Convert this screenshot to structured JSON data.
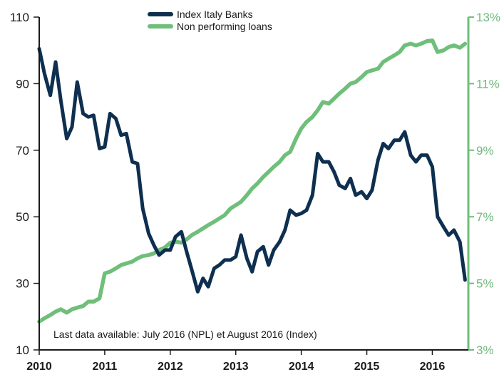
{
  "chart_data": {
    "type": "line",
    "x_ticks": [
      "2010",
      "2011",
      "2012",
      "2013",
      "2014",
      "2015",
      "2016"
    ],
    "ylim_left": [
      10,
      110
    ],
    "yticks_left": [
      "10",
      "30",
      "50",
      "70",
      "90",
      "110"
    ],
    "ylim_right": [
      3,
      13
    ],
    "yticks_right": [
      "3%",
      "5%",
      "7%",
      "9%",
      "11%",
      "13%"
    ],
    "note": "Last data available: July 2016 (NPL) et August 2016 (Index)",
    "legend_position": "top-center",
    "series": [
      {
        "name": "Index Italy Banks",
        "axis": "left",
        "color": "#0e2f4f",
        "points": [
          [
            2010.0,
            100.5
          ],
          [
            2010.08,
            93
          ],
          [
            2010.17,
            86.5
          ],
          [
            2010.25,
            96.5
          ],
          [
            2010.33,
            85
          ],
          [
            2010.42,
            73.5
          ],
          [
            2010.5,
            77
          ],
          [
            2010.58,
            90.5
          ],
          [
            2010.67,
            81
          ],
          [
            2010.75,
            80
          ],
          [
            2010.83,
            80.5
          ],
          [
            2010.92,
            70.5
          ],
          [
            2011.0,
            71
          ],
          [
            2011.08,
            81
          ],
          [
            2011.17,
            79.5
          ],
          [
            2011.25,
            74.5
          ],
          [
            2011.33,
            75
          ],
          [
            2011.42,
            66.5
          ],
          [
            2011.5,
            66
          ],
          [
            2011.58,
            52.5
          ],
          [
            2011.67,
            45
          ],
          [
            2011.75,
            41.5
          ],
          [
            2011.83,
            38.5
          ],
          [
            2011.92,
            40
          ],
          [
            2012.0,
            40
          ],
          [
            2012.08,
            44
          ],
          [
            2012.17,
            45.5
          ],
          [
            2012.25,
            39.5
          ],
          [
            2012.33,
            34
          ],
          [
            2012.42,
            27.5
          ],
          [
            2012.5,
            31.5
          ],
          [
            2012.58,
            29
          ],
          [
            2012.67,
            34.5
          ],
          [
            2012.75,
            35.5
          ],
          [
            2012.83,
            37
          ],
          [
            2012.92,
            37
          ],
          [
            2013.0,
            38
          ],
          [
            2013.08,
            44.5
          ],
          [
            2013.17,
            37.5
          ],
          [
            2013.25,
            33.5
          ],
          [
            2013.33,
            39.5
          ],
          [
            2013.42,
            41
          ],
          [
            2013.5,
            35.5
          ],
          [
            2013.58,
            40
          ],
          [
            2013.67,
            42.5
          ],
          [
            2013.75,
            46
          ],
          [
            2013.83,
            52
          ],
          [
            2013.92,
            50.5
          ],
          [
            2014.0,
            51
          ],
          [
            2014.08,
            52
          ],
          [
            2014.17,
            56.5
          ],
          [
            2014.25,
            69
          ],
          [
            2014.33,
            66.5
          ],
          [
            2014.42,
            66.5
          ],
          [
            2014.5,
            63.5
          ],
          [
            2014.58,
            59.5
          ],
          [
            2014.67,
            58.5
          ],
          [
            2014.75,
            61.5
          ],
          [
            2014.83,
            56.5
          ],
          [
            2014.92,
            57.5
          ],
          [
            2015.0,
            55.5
          ],
          [
            2015.08,
            58
          ],
          [
            2015.17,
            67
          ],
          [
            2015.25,
            72
          ],
          [
            2015.33,
            70.5
          ],
          [
            2015.42,
            73
          ],
          [
            2015.5,
            73
          ],
          [
            2015.58,
            75.5
          ],
          [
            2015.67,
            68.5
          ],
          [
            2015.75,
            66.5
          ],
          [
            2015.83,
            68.5
          ],
          [
            2015.92,
            68.5
          ],
          [
            2016.0,
            65
          ],
          [
            2016.08,
            50
          ],
          [
            2016.17,
            47
          ],
          [
            2016.25,
            44.5
          ],
          [
            2016.33,
            46
          ],
          [
            2016.42,
            42.5
          ],
          [
            2016.5,
            31
          ]
        ]
      },
      {
        "name": "Non performing loans",
        "axis": "right",
        "color": "#6fbf7a",
        "points": [
          [
            2010.0,
            3.85
          ],
          [
            2010.08,
            3.95
          ],
          [
            2010.17,
            4.05
          ],
          [
            2010.25,
            4.15
          ],
          [
            2010.33,
            4.22
          ],
          [
            2010.42,
            4.12
          ],
          [
            2010.5,
            4.22
          ],
          [
            2010.58,
            4.27
          ],
          [
            2010.67,
            4.32
          ],
          [
            2010.75,
            4.45
          ],
          [
            2010.83,
            4.45
          ],
          [
            2010.92,
            4.55
          ],
          [
            2011.0,
            5.3
          ],
          [
            2011.08,
            5.35
          ],
          [
            2011.17,
            5.45
          ],
          [
            2011.25,
            5.55
          ],
          [
            2011.33,
            5.6
          ],
          [
            2011.42,
            5.65
          ],
          [
            2011.5,
            5.75
          ],
          [
            2011.58,
            5.82
          ],
          [
            2011.67,
            5.85
          ],
          [
            2011.75,
            5.9
          ],
          [
            2011.83,
            6.0
          ],
          [
            2011.92,
            6.08
          ],
          [
            2012.0,
            6.22
          ],
          [
            2012.08,
            6.25
          ],
          [
            2012.17,
            6.22
          ],
          [
            2012.25,
            6.32
          ],
          [
            2012.33,
            6.45
          ],
          [
            2012.42,
            6.55
          ],
          [
            2012.5,
            6.65
          ],
          [
            2012.58,
            6.75
          ],
          [
            2012.67,
            6.85
          ],
          [
            2012.75,
            6.95
          ],
          [
            2012.83,
            7.05
          ],
          [
            2012.92,
            7.25
          ],
          [
            2013.0,
            7.35
          ],
          [
            2013.08,
            7.45
          ],
          [
            2013.17,
            7.65
          ],
          [
            2013.25,
            7.85
          ],
          [
            2013.33,
            8.0
          ],
          [
            2013.42,
            8.2
          ],
          [
            2013.5,
            8.35
          ],
          [
            2013.58,
            8.5
          ],
          [
            2013.67,
            8.65
          ],
          [
            2013.75,
            8.85
          ],
          [
            2013.83,
            8.95
          ],
          [
            2013.92,
            9.35
          ],
          [
            2014.0,
            9.65
          ],
          [
            2014.08,
            9.85
          ],
          [
            2014.17,
            10.0
          ],
          [
            2014.25,
            10.2
          ],
          [
            2014.33,
            10.45
          ],
          [
            2014.42,
            10.4
          ],
          [
            2014.5,
            10.55
          ],
          [
            2014.58,
            10.7
          ],
          [
            2014.67,
            10.85
          ],
          [
            2014.75,
            11.0
          ],
          [
            2014.83,
            11.05
          ],
          [
            2014.92,
            11.2
          ],
          [
            2015.0,
            11.35
          ],
          [
            2015.08,
            11.4
          ],
          [
            2015.17,
            11.45
          ],
          [
            2015.25,
            11.65
          ],
          [
            2015.33,
            11.75
          ],
          [
            2015.42,
            11.85
          ],
          [
            2015.5,
            11.95
          ],
          [
            2015.58,
            12.15
          ],
          [
            2015.67,
            12.2
          ],
          [
            2015.75,
            12.15
          ],
          [
            2015.83,
            12.2
          ],
          [
            2015.92,
            12.28
          ],
          [
            2016.0,
            12.3
          ],
          [
            2016.08,
            11.95
          ],
          [
            2016.17,
            12.0
          ],
          [
            2016.25,
            12.1
          ],
          [
            2016.33,
            12.15
          ],
          [
            2016.42,
            12.08
          ],
          [
            2016.5,
            12.2
          ]
        ]
      }
    ]
  }
}
